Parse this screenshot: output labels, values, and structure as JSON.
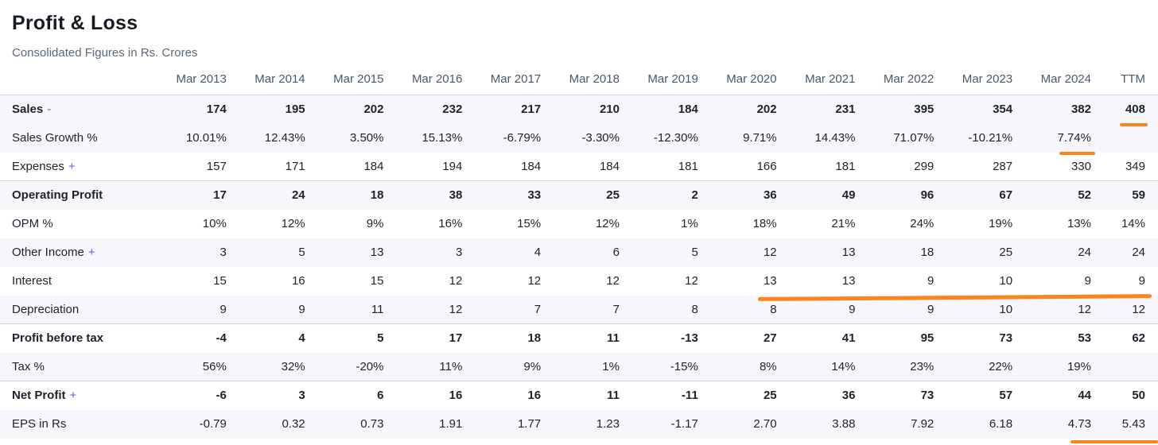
{
  "header": {
    "title": "Profit & Loss",
    "subtitle": "Consolidated Figures in Rs. Crores"
  },
  "table": {
    "columns": [
      "Mar 2013",
      "Mar 2014",
      "Mar 2015",
      "Mar 2016",
      "Mar 2017",
      "Mar 2018",
      "Mar 2019",
      "Mar 2020",
      "Mar 2021",
      "Mar 2022",
      "Mar 2023",
      "Mar 2024",
      "TTM"
    ],
    "rows": [
      {
        "label": "Sales",
        "suffix": "-",
        "bold": true,
        "shaded": true,
        "strong_border": false,
        "expandable": true,
        "values": [
          "174",
          "195",
          "202",
          "232",
          "217",
          "210",
          "184",
          "202",
          "231",
          "395",
          "354",
          "382",
          "408"
        ]
      },
      {
        "label": "Sales Growth %",
        "suffix": "",
        "bold": false,
        "shaded": true,
        "strong_border": false,
        "expandable": false,
        "values": [
          "10.01%",
          "12.43%",
          "3.50%",
          "15.13%",
          "-6.79%",
          "-3.30%",
          "-12.30%",
          "9.71%",
          "14.43%",
          "71.07%",
          "-10.21%",
          "7.74%",
          ""
        ]
      },
      {
        "label": "Expenses",
        "suffix": "+",
        "bold": false,
        "shaded": false,
        "strong_border": false,
        "expandable": true,
        "values": [
          "157",
          "171",
          "184",
          "194",
          "184",
          "184",
          "181",
          "166",
          "181",
          "299",
          "287",
          "330",
          "349"
        ]
      },
      {
        "label": "Operating Profit",
        "suffix": "",
        "bold": true,
        "shaded": true,
        "strong_border": true,
        "expandable": false,
        "values": [
          "17",
          "24",
          "18",
          "38",
          "33",
          "25",
          "2",
          "36",
          "49",
          "96",
          "67",
          "52",
          "59"
        ]
      },
      {
        "label": "OPM %",
        "suffix": "",
        "bold": false,
        "shaded": false,
        "strong_border": false,
        "expandable": false,
        "values": [
          "10%",
          "12%",
          "9%",
          "16%",
          "15%",
          "12%",
          "1%",
          "18%",
          "21%",
          "24%",
          "19%",
          "13%",
          "14%"
        ]
      },
      {
        "label": "Other Income",
        "suffix": "+",
        "bold": false,
        "shaded": true,
        "strong_border": false,
        "expandable": true,
        "values": [
          "3",
          "5",
          "13",
          "3",
          "4",
          "6",
          "5",
          "12",
          "13",
          "18",
          "25",
          "24",
          "24"
        ]
      },
      {
        "label": "Interest",
        "suffix": "",
        "bold": false,
        "shaded": false,
        "strong_border": false,
        "expandable": false,
        "values": [
          "15",
          "16",
          "15",
          "12",
          "12",
          "12",
          "12",
          "13",
          "13",
          "9",
          "10",
          "9",
          "9"
        ]
      },
      {
        "label": "Depreciation",
        "suffix": "",
        "bold": false,
        "shaded": true,
        "strong_border": false,
        "expandable": false,
        "values": [
          "9",
          "9",
          "11",
          "12",
          "7",
          "7",
          "8",
          "8",
          "9",
          "9",
          "10",
          "12",
          "12"
        ]
      },
      {
        "label": "Profit before tax",
        "suffix": "",
        "bold": true,
        "shaded": false,
        "strong_border": true,
        "expandable": false,
        "values": [
          "-4",
          "4",
          "5",
          "17",
          "18",
          "11",
          "-13",
          "27",
          "41",
          "95",
          "73",
          "53",
          "62"
        ]
      },
      {
        "label": "Tax %",
        "suffix": "",
        "bold": false,
        "shaded": true,
        "strong_border": false,
        "expandable": false,
        "values": [
          "56%",
          "32%",
          "-20%",
          "11%",
          "9%",
          "1%",
          "-15%",
          "8%",
          "14%",
          "23%",
          "22%",
          "19%",
          ""
        ]
      },
      {
        "label": "Net Profit",
        "suffix": "+",
        "bold": true,
        "shaded": false,
        "strong_border": true,
        "expandable": true,
        "values": [
          "-6",
          "3",
          "6",
          "16",
          "16",
          "11",
          "-11",
          "25",
          "36",
          "73",
          "57",
          "44",
          "50"
        ]
      },
      {
        "label": "EPS in Rs",
        "suffix": "",
        "bold": false,
        "shaded": true,
        "strong_border": false,
        "expandable": false,
        "values": [
          "-0.79",
          "0.32",
          "0.73",
          "1.91",
          "1.77",
          "1.23",
          "-1.17",
          "2.70",
          "3.88",
          "7.92",
          "6.18",
          "4.73",
          "5.43"
        ]
      }
    ]
  },
  "annotations": {
    "description": "orange highlight underlines",
    "items": [
      "under-sales-ttm-408",
      "under-sales-growth-2024-7.74%",
      "under-interest-row-mar2020-to-ttm",
      "under-eps-4.73-5.43"
    ]
  },
  "colors": {
    "accent_orange": "#F8861D",
    "expand_sign_violet": "#6358F5",
    "column_header_text": "#46596E",
    "strong_border": "#CFD9E5",
    "row_shade": "#F6F6FB",
    "title_text": "#161B25",
    "subtitle_text": "#5B6A7A"
  }
}
